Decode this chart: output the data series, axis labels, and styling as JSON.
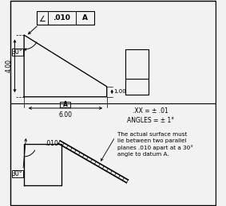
{
  "bg_color": "#f0f0f0",
  "line_color": "#000000",
  "tolerance_note": ".XX = ± .01\nANGLES = ± 1°",
  "description": "The actual surface must\nlie between two parallel\nplanes .010 apart at a 30°\nangle to datum A.",
  "dim_010": ".010",
  "angle_label": "30°"
}
